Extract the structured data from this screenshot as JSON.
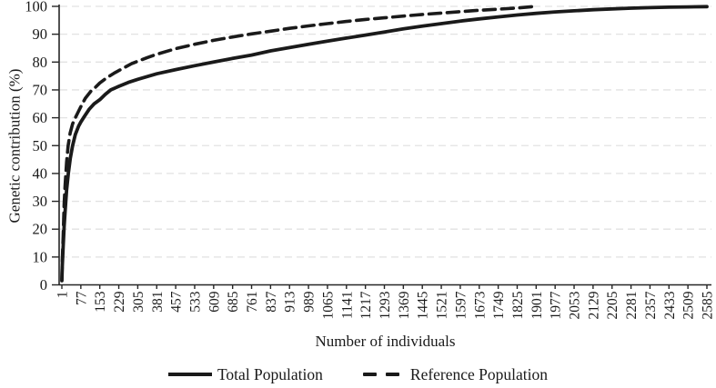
{
  "chart_data": {
    "type": "line",
    "title": "",
    "xlabel": "Number of individuals",
    "ylabel": "Genetic contribution (%)",
    "ylim": [
      0,
      100
    ],
    "xlim": [
      1,
      2585
    ],
    "y_ticks": [
      0,
      10,
      20,
      30,
      40,
      50,
      60,
      70,
      80,
      90,
      100
    ],
    "x_tick_labels": [
      "1",
      "77",
      "153",
      "229",
      "305",
      "381",
      "457",
      "533",
      "609",
      "685",
      "761",
      "837",
      "913",
      "989",
      "1065",
      "1141",
      "1217",
      "1293",
      "1369",
      "1445",
      "1521",
      "1597",
      "1673",
      "1749",
      "1825",
      "1901",
      "1977",
      "2053",
      "2129",
      "2205",
      "2281",
      "2357",
      "2433",
      "2509",
      "2585"
    ],
    "grid": {
      "horizontal": true,
      "style": "dashed",
      "on": true
    },
    "legend_position": "bottom",
    "colors": {
      "line": "#1a1a1a",
      "axis": "#262626",
      "gridline": "#e2e2e2",
      "background": "#ffffff"
    },
    "series": [
      {
        "name": "Total Population",
        "style": "solid",
        "points": [
          [
            1,
            1.5
          ],
          [
            3,
            7
          ],
          [
            6,
            13.5
          ],
          [
            10,
            21
          ],
          [
            14,
            26.5
          ],
          [
            20,
            34
          ],
          [
            27,
            40
          ],
          [
            35,
            45.5
          ],
          [
            44,
            50
          ],
          [
            55,
            54
          ],
          [
            68,
            57
          ],
          [
            77,
            58.5
          ],
          [
            90,
            60.3
          ],
          [
            110,
            63
          ],
          [
            130,
            65
          ],
          [
            153,
            66.5
          ],
          [
            175,
            68.4
          ],
          [
            197,
            70
          ],
          [
            229,
            71.3
          ],
          [
            267,
            72.7
          ],
          [
            305,
            73.8
          ],
          [
            381,
            75.8
          ],
          [
            457,
            77.3
          ],
          [
            533,
            78.7
          ],
          [
            609,
            80
          ],
          [
            685,
            81.3
          ],
          [
            761,
            82.5
          ],
          [
            837,
            84
          ],
          [
            913,
            85.2
          ],
          [
            989,
            86.4
          ],
          [
            1065,
            87.5
          ],
          [
            1141,
            88.6
          ],
          [
            1217,
            89.7
          ],
          [
            1293,
            90.8
          ],
          [
            1369,
            91.9
          ],
          [
            1445,
            92.9
          ],
          [
            1521,
            93.8
          ],
          [
            1597,
            94.7
          ],
          [
            1673,
            95.5
          ],
          [
            1749,
            96.2
          ],
          [
            1825,
            96.9
          ],
          [
            1901,
            97.5
          ],
          [
            1977,
            98
          ],
          [
            2053,
            98.4
          ],
          [
            2129,
            98.8
          ],
          [
            2205,
            99.1
          ],
          [
            2281,
            99.35
          ],
          [
            2357,
            99.55
          ],
          [
            2433,
            99.7
          ],
          [
            2509,
            99.8
          ],
          [
            2585,
            99.9
          ]
        ]
      },
      {
        "name": "Reference Population",
        "style": "dashed",
        "points": [
          [
            1,
            2
          ],
          [
            3,
            9
          ],
          [
            6,
            17
          ],
          [
            10,
            29
          ],
          [
            14,
            36
          ],
          [
            20,
            44
          ],
          [
            26,
            50
          ],
          [
            34,
            54.5
          ],
          [
            44,
            57.8
          ],
          [
            55,
            60
          ],
          [
            66,
            62
          ],
          [
            77,
            64
          ],
          [
            95,
            67
          ],
          [
            117,
            69.5
          ],
          [
            135,
            70.9
          ],
          [
            153,
            72.5
          ],
          [
            180,
            74.3
          ],
          [
            210,
            76
          ],
          [
            245,
            77.7
          ],
          [
            280,
            79.4
          ],
          [
            305,
            80.3
          ],
          [
            343,
            81.6
          ],
          [
            381,
            82.8
          ],
          [
            457,
            84.8
          ],
          [
            533,
            86.4
          ],
          [
            609,
            87.8
          ],
          [
            685,
            89
          ],
          [
            761,
            90.1
          ],
          [
            837,
            91.1
          ],
          [
            913,
            92.1
          ],
          [
            989,
            93
          ],
          [
            1065,
            93.8
          ],
          [
            1141,
            94.6
          ],
          [
            1217,
            95.3
          ],
          [
            1293,
            95.9
          ],
          [
            1369,
            96.5
          ],
          [
            1445,
            97.1
          ],
          [
            1521,
            97.6
          ],
          [
            1597,
            98.1
          ],
          [
            1673,
            98.6
          ],
          [
            1749,
            99
          ],
          [
            1825,
            99.4
          ],
          [
            1901,
            100
          ]
        ]
      }
    ]
  }
}
